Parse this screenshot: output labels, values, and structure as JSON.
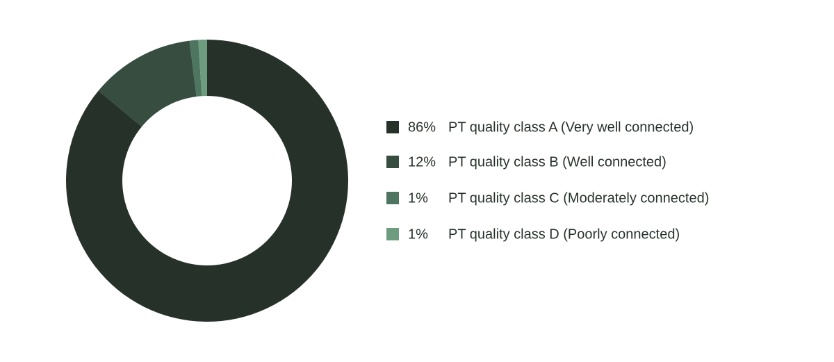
{
  "chart_data": {
    "type": "donut",
    "categories": [
      "PT quality class A (Very well connected)",
      "PT quality class B (Well connected)",
      "PT quality class C (Moderately connected)",
      "PT quality class D (Poorly connected)"
    ],
    "values": [
      86,
      12,
      1,
      1
    ],
    "value_labels": [
      "86%",
      "12%",
      "1%",
      "1%"
    ],
    "colors": [
      "#263229",
      "#364d40",
      "#4e7560",
      "#6d9c7e"
    ],
    "legend": "right"
  }
}
